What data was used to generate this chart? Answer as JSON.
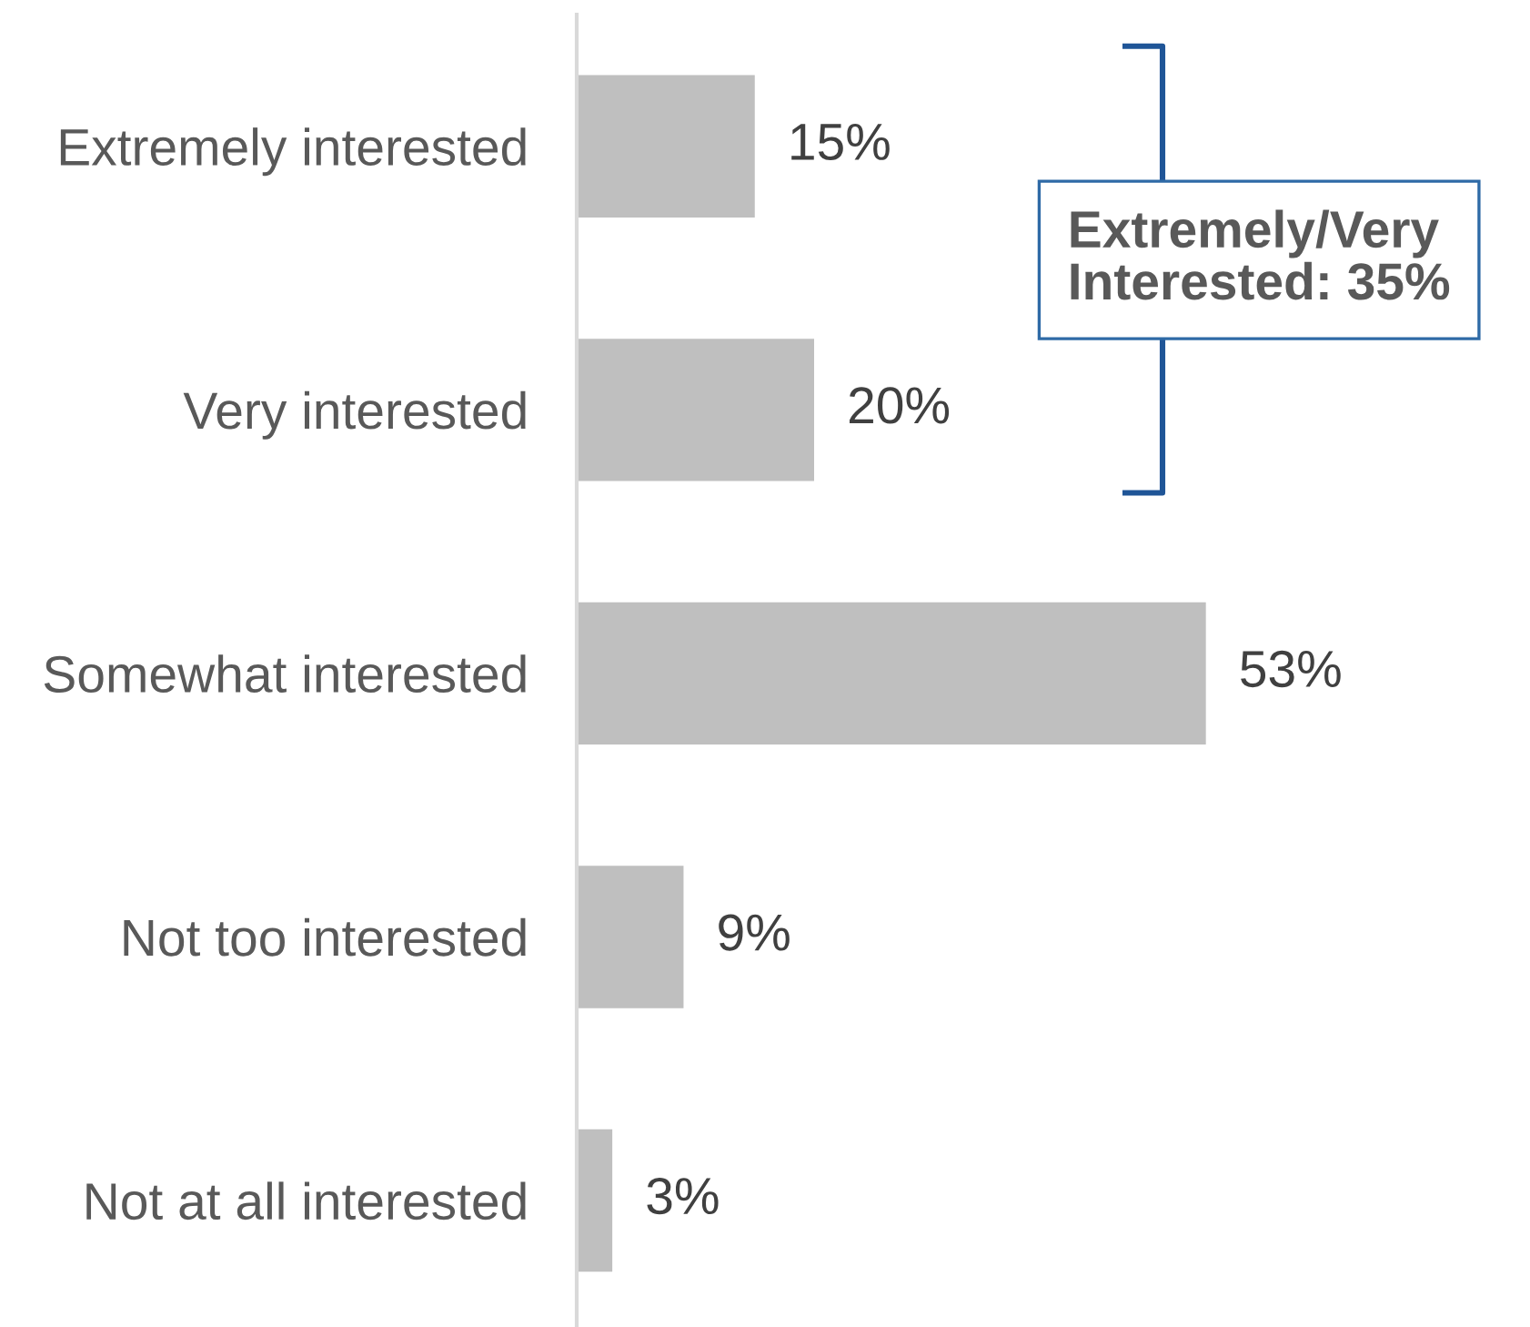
{
  "chart_data": {
    "type": "bar",
    "orientation": "horizontal",
    "categories": [
      "Extremely interested",
      "Very interested",
      "Somewhat interested",
      "Not too interested",
      "Not at all interested"
    ],
    "values": [
      15,
      20,
      53,
      9,
      3
    ],
    "value_labels": [
      "15%",
      "20%",
      "53%",
      "9%",
      "3%"
    ],
    "color": "#bfbfbf",
    "tick_labels": "y",
    "annotations": [
      "Extremely/Very\nInterested: 35%"
    ]
  }
}
